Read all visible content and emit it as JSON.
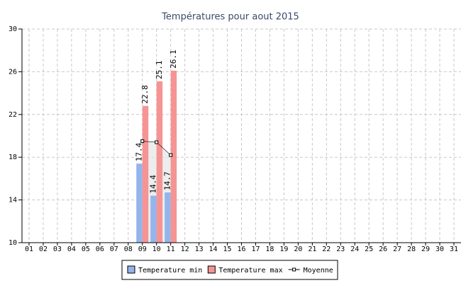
{
  "chart_data": {
    "type": "bar",
    "title": "Températures pour aout 2015",
    "categories": [
      "01",
      "02",
      "03",
      "04",
      "05",
      "06",
      "07",
      "08",
      "09",
      "10",
      "11",
      "12",
      "13",
      "14",
      "15",
      "16",
      "17",
      "18",
      "19",
      "20",
      "21",
      "22",
      "23",
      "24",
      "25",
      "26",
      "27",
      "28",
      "29",
      "30",
      "31"
    ],
    "series": [
      {
        "name": "Temperature min",
        "type": "bar",
        "color": "#94b4ec",
        "values": [
          null,
          null,
          null,
          null,
          null,
          null,
          null,
          null,
          17.4,
          14.4,
          14.7,
          null,
          null,
          null,
          null,
          null,
          null,
          null,
          null,
          null,
          null,
          null,
          null,
          null,
          null,
          null,
          null,
          null,
          null,
          null,
          null
        ]
      },
      {
        "name": "Temperature max",
        "type": "bar",
        "color": "#f69494",
        "values": [
          null,
          null,
          null,
          null,
          null,
          null,
          null,
          null,
          22.8,
          25.1,
          26.1,
          null,
          null,
          null,
          null,
          null,
          null,
          null,
          null,
          null,
          null,
          null,
          null,
          null,
          null,
          null,
          null,
          null,
          null,
          null,
          null
        ]
      },
      {
        "name": "Moyenne",
        "type": "line",
        "color": "#000000",
        "values": [
          null,
          null,
          null,
          null,
          null,
          null,
          null,
          null,
          19.5,
          19.4,
          18.2,
          null,
          null,
          null,
          null,
          null,
          null,
          null,
          null,
          null,
          null,
          null,
          null,
          null,
          null,
          null,
          null,
          null,
          null,
          null,
          null
        ]
      }
    ],
    "ylim": [
      10,
      30
    ],
    "yticks": [
      10,
      14,
      18,
      22,
      26,
      30
    ],
    "grid": true
  }
}
